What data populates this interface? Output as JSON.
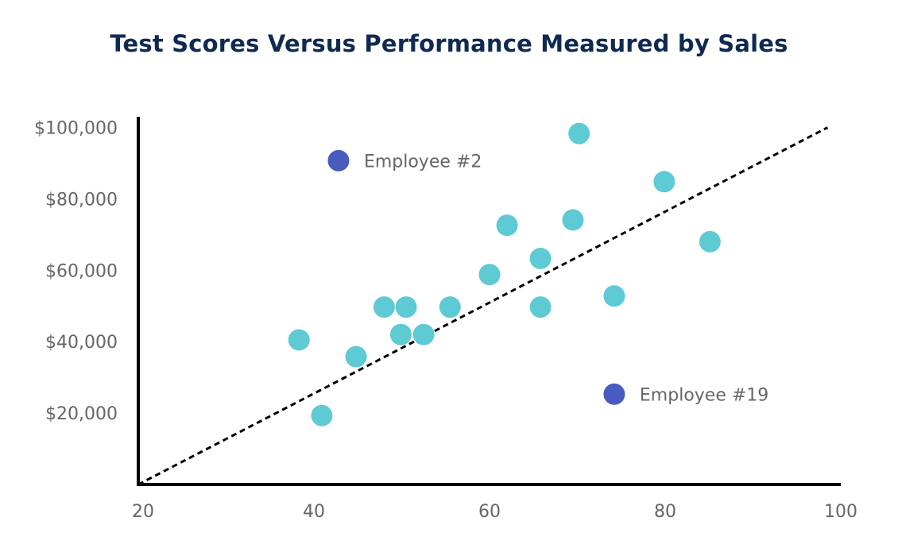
{
  "chart_data": {
    "type": "scatter",
    "title": "Test Scores Versus Performance Measured by Sales",
    "xlabel": "",
    "ylabel": "",
    "xlim": [
      20,
      100
    ],
    "ylim": [
      0,
      103000
    ],
    "x_ticks": [
      {
        "value": 20,
        "label": "20"
      },
      {
        "value": 40,
        "label": "40"
      },
      {
        "value": 60,
        "label": "60"
      },
      {
        "value": 80,
        "label": "80"
      },
      {
        "value": 100,
        "label": "100"
      }
    ],
    "y_ticks": [
      {
        "value": 20000,
        "label": "$20,000"
      },
      {
        "value": 40000,
        "label": "$40,000"
      },
      {
        "value": 60000,
        "label": "$60,000"
      },
      {
        "value": 80000,
        "label": "$80,000"
      },
      {
        "value": 100000,
        "label": "$100,000"
      }
    ],
    "grid": false,
    "series": [
      {
        "color": "#5ecad4",
        "points": [
          {
            "x": 38.3,
            "y": 40500
          },
          {
            "x": 40.9,
            "y": 19300
          },
          {
            "x": 44.8,
            "y": 35800
          },
          {
            "x": 48.0,
            "y": 49700
          },
          {
            "x": 49.9,
            "y": 42000
          },
          {
            "x": 50.5,
            "y": 49700
          },
          {
            "x": 52.5,
            "y": 42000
          },
          {
            "x": 55.5,
            "y": 49700
          },
          {
            "x": 60.0,
            "y": 58800
          },
          {
            "x": 62.0,
            "y": 72600
          },
          {
            "x": 65.8,
            "y": 63300
          },
          {
            "x": 65.8,
            "y": 49700
          },
          {
            "x": 69.5,
            "y": 74100
          },
          {
            "x": 70.2,
            "y": 98300
          },
          {
            "x": 74.2,
            "y": 52800
          },
          {
            "x": 79.9,
            "y": 84800
          },
          {
            "x": 85.1,
            "y": 68000
          }
        ]
      },
      {
        "color": "#4a5bc0",
        "points": [
          {
            "x": 42.8,
            "y": 90700,
            "label": "Employee #2"
          },
          {
            "x": 74.2,
            "y": 25300,
            "label": "Employee #19"
          }
        ]
      }
    ],
    "trend_line": {
      "x": [
        20,
        98.5
      ],
      "y": [
        0,
        100000
      ],
      "style": "dashed",
      "color": "#000000"
    }
  }
}
